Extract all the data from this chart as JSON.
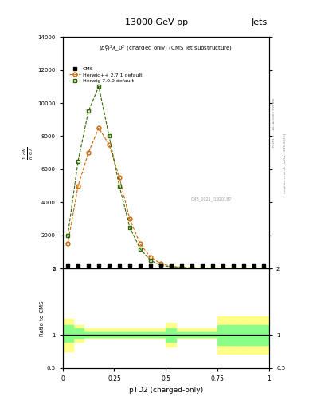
{
  "title": "13000 GeV pp",
  "title_right": "Jets",
  "plot_title": "$(p_T^P)^2\\lambda\\_0^2$ (charged only) (CMS jet substructure)",
  "xlabel": "pTD2 (charged-only)",
  "watermark": "CMS_2021_I1920187",
  "rivet_label": "Rivet 3.1.10, ≥ 500k events",
  "mcplots_label": "mcplots.cern.ch [arXiv:1306.3436]",
  "hpp_x": [
    0.025,
    0.075,
    0.125,
    0.175,
    0.225,
    0.275,
    0.325,
    0.375,
    0.425,
    0.475,
    0.525,
    0.575,
    0.625,
    0.675,
    0.725,
    0.775,
    0.825,
    0.875,
    0.925,
    0.975
  ],
  "hpp_y": [
    1500,
    5000,
    7000,
    8500,
    7500,
    5500,
    3000,
    1500,
    700,
    300,
    150,
    80,
    50,
    30,
    20,
    15,
    10,
    8,
    5,
    3
  ],
  "h700_x": [
    0.025,
    0.075,
    0.125,
    0.175,
    0.225,
    0.275,
    0.325,
    0.375,
    0.425,
    0.475,
    0.525,
    0.575,
    0.625,
    0.675,
    0.725,
    0.775,
    0.825,
    0.875,
    0.925,
    0.975
  ],
  "h700_y": [
    2000,
    6500,
    9500,
    11000,
    8000,
    5000,
    2500,
    1200,
    500,
    200,
    100,
    60,
    35,
    20,
    12,
    8,
    5,
    3,
    2,
    1
  ],
  "cms_x": [
    0.025,
    0.075,
    0.125,
    0.175,
    0.225,
    0.275,
    0.325,
    0.375,
    0.425,
    0.475,
    0.525,
    0.575,
    0.625,
    0.675,
    0.725,
    0.775,
    0.825,
    0.875,
    0.925,
    0.975
  ],
  "cms_y": [
    200,
    200,
    200,
    200,
    200,
    200,
    200,
    200,
    200,
    200,
    200,
    200,
    200,
    200,
    200,
    200,
    200,
    200,
    200,
    200
  ],
  "ratio_edges": [
    0.0,
    0.05,
    0.1,
    0.15,
    0.2,
    0.25,
    0.3,
    0.35,
    0.4,
    0.45,
    0.5,
    0.55,
    0.6,
    0.65,
    0.7,
    0.75,
    0.8,
    0.85,
    0.9,
    0.95,
    1.0
  ],
  "ratio_yellow_lo": [
    0.75,
    0.9,
    0.95,
    0.95,
    0.95,
    0.95,
    0.95,
    0.95,
    0.95,
    0.95,
    0.82,
    0.95,
    0.95,
    0.95,
    0.95,
    0.72,
    0.72,
    0.72,
    0.72,
    0.72
  ],
  "ratio_yellow_hi": [
    1.25,
    1.15,
    1.1,
    1.1,
    1.1,
    1.1,
    1.1,
    1.1,
    1.1,
    1.1,
    1.18,
    1.1,
    1.1,
    1.1,
    1.1,
    1.28,
    1.28,
    1.28,
    1.28,
    1.28
  ],
  "ratio_green_lo": [
    0.9,
    0.95,
    0.97,
    0.97,
    0.97,
    0.97,
    0.97,
    0.97,
    0.97,
    0.97,
    0.9,
    0.97,
    0.97,
    0.97,
    0.97,
    0.85,
    0.85,
    0.85,
    0.85,
    0.85
  ],
  "ratio_green_hi": [
    1.15,
    1.1,
    1.05,
    1.05,
    1.05,
    1.05,
    1.05,
    1.05,
    1.05,
    1.05,
    1.1,
    1.05,
    1.05,
    1.05,
    1.05,
    1.15,
    1.15,
    1.15,
    1.15,
    1.15
  ],
  "ylim_main": [
    0,
    14000
  ],
  "ylim_ratio": [
    0.5,
    2.0
  ],
  "xlim": [
    0.0,
    1.0
  ],
  "yticks_main": [
    0,
    2000,
    4000,
    6000,
    8000,
    10000,
    12000,
    14000
  ],
  "color_hpp": "#cc6600",
  "color_h700": "#336600",
  "color_cms": "#000000",
  "color_ratio_yellow": "#ffff88",
  "color_ratio_green": "#88ff88",
  "legend_entries": [
    "CMS",
    "Herwig++ 2.7.1 default",
    "Herwig 7.0.0 default"
  ]
}
